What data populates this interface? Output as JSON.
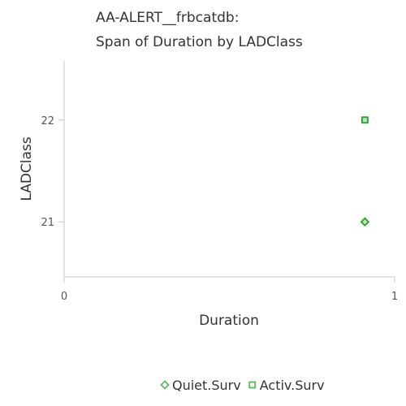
{
  "chart_data": {
    "type": "scatter",
    "title_lines": [
      "AA-ALERT__frbcatdb:",
      "Span of Duration by LADClass"
    ],
    "xlabel": "Duration",
    "ylabel": "LADClass",
    "xlim": [
      0,
      1
    ],
    "ylim": [
      20.46,
      22.58
    ],
    "x_ticks": [
      0,
      1
    ],
    "y_ticks": [
      21,
      22
    ],
    "grid": false,
    "legend_position": "bottom",
    "series": [
      {
        "name": "Quiet.Surv",
        "marker": "diamond",
        "color": "#2e9e2e",
        "fill": "#b8e6b8",
        "points": [
          {
            "x": 0.91,
            "y": 21
          }
        ]
      },
      {
        "name": "Activ.Surv",
        "marker": "square",
        "color": "#2e9e2e",
        "fill": "#b8e6b8",
        "points": [
          {
            "x": 0.91,
            "y": 22
          }
        ]
      }
    ]
  }
}
